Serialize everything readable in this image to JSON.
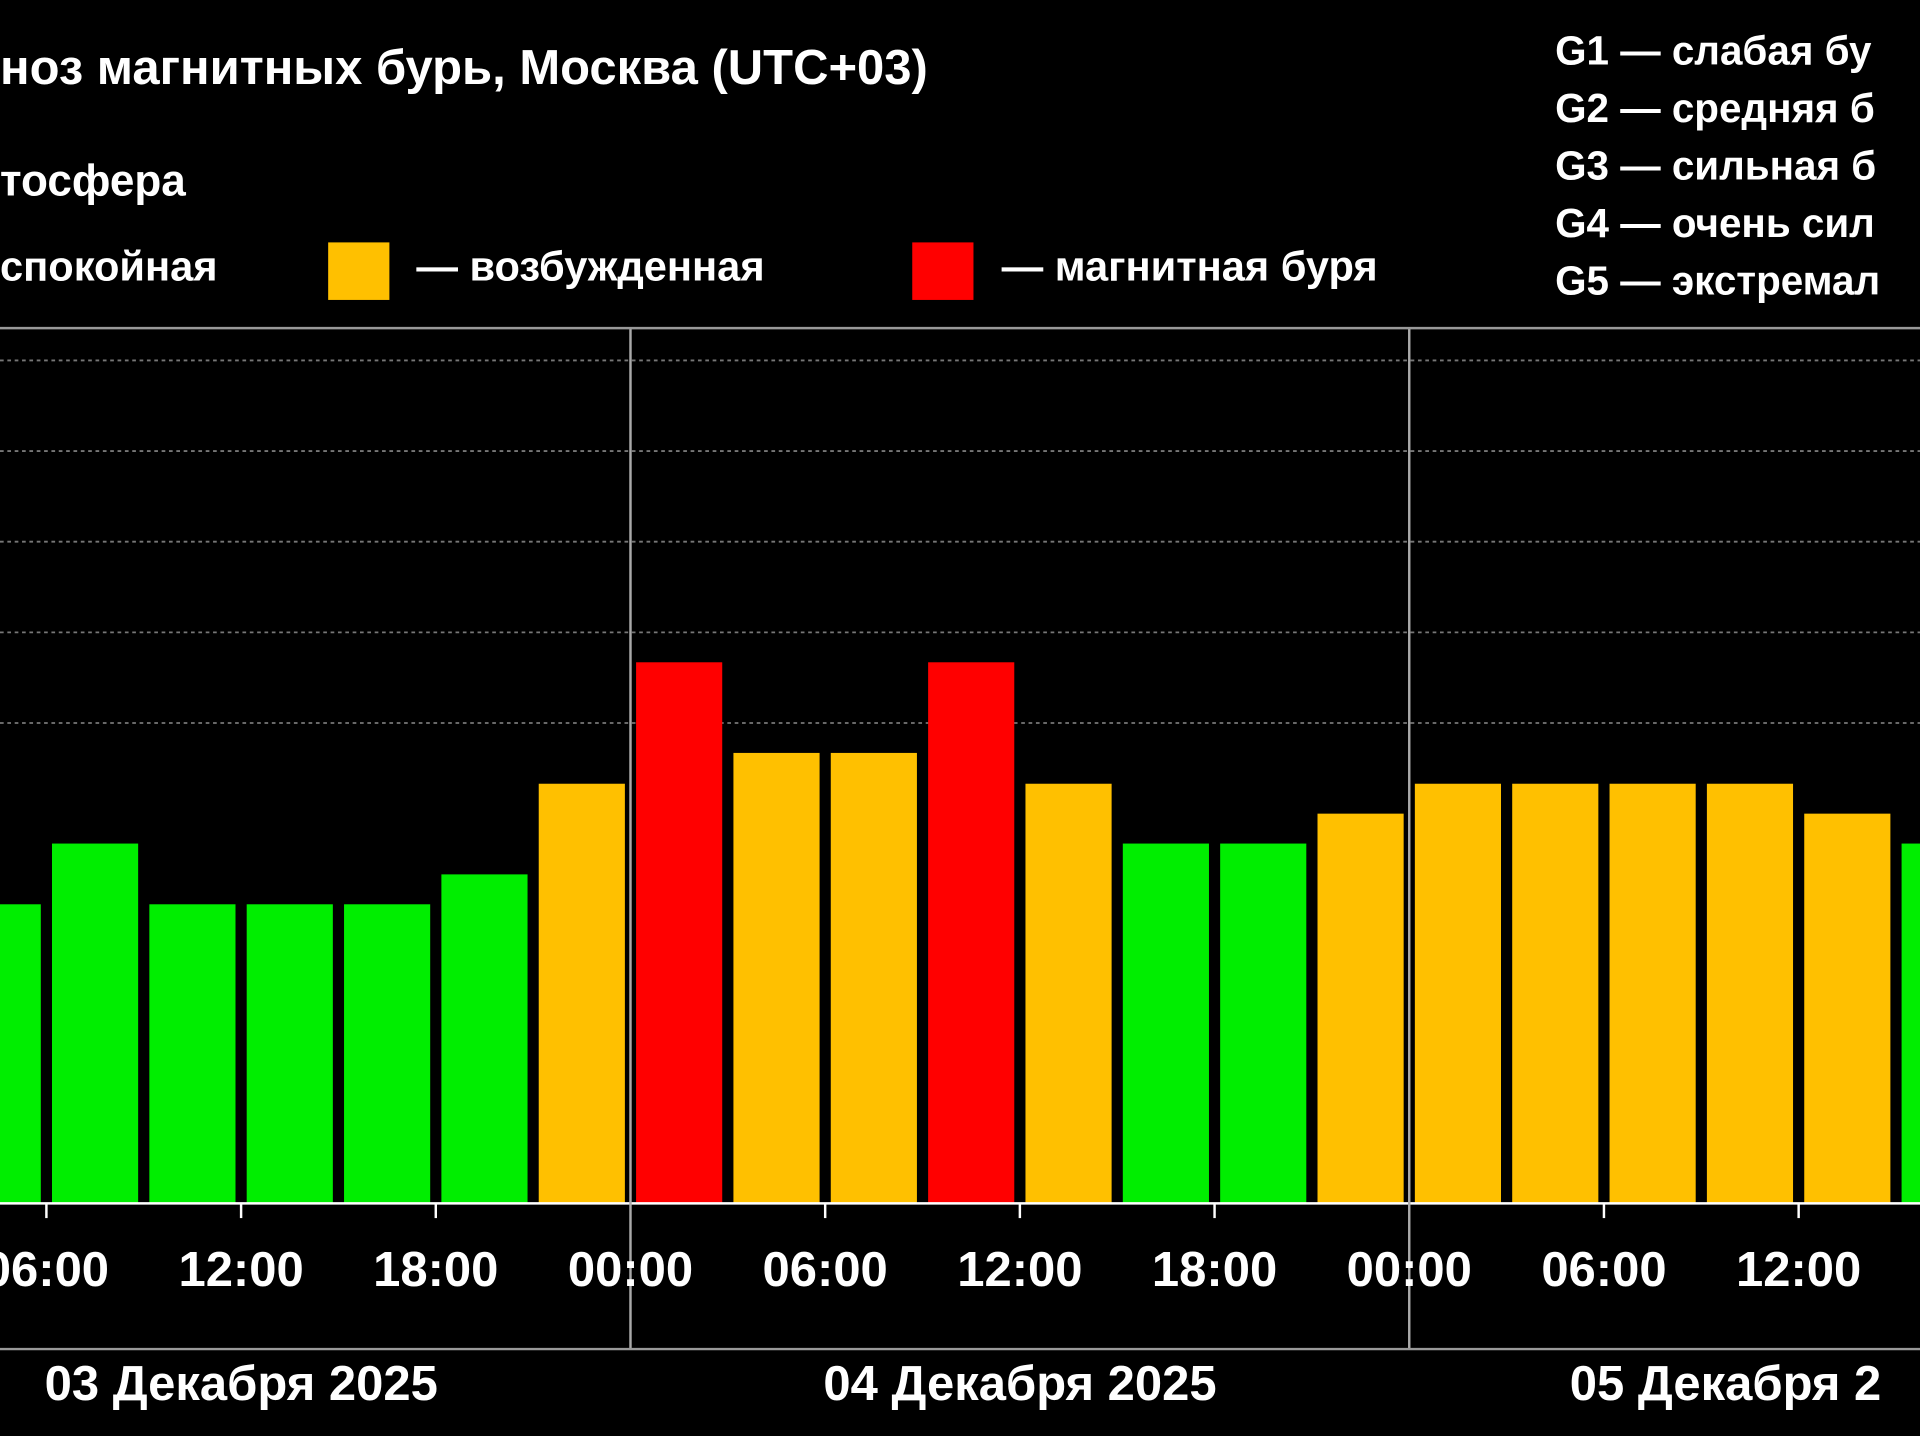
{
  "chart_data": {
    "type": "bar",
    "title": "ноз магнитных бурь, Москва (UTC+03)",
    "subtitle": "тосфера",
    "legend": [
      {
        "label": "спокойная",
        "color": "#00ee00"
      },
      {
        "label": "— возбужденная",
        "color": "#ffc000"
      },
      {
        "label": "— магнитная буря",
        "color": "#ff0000"
      }
    ],
    "scale_notes": [
      "G1 — слабая бу",
      "G2 — средняя б",
      "G3 — сильная б",
      "G4 — очень сил",
      "G5 — экстремал"
    ],
    "x": [
      4.5,
      7.5,
      10.5,
      13.5,
      16.5,
      19.5,
      22.5,
      25.5,
      28.5,
      31.5,
      34.5,
      37.5,
      40.5,
      43.5,
      46.5,
      49.5,
      52.5,
      55.5,
      58.5,
      61.5,
      64.5
    ],
    "values": [
      3,
      3.67,
      3,
      3,
      3,
      3.33,
      4.33,
      5.67,
      4.67,
      4.67,
      5.67,
      4.33,
      3.67,
      3.67,
      4,
      4.33,
      4.33,
      4.33,
      4.33,
      4,
      3.67
    ],
    "colors": [
      "#00ee00",
      "#00ee00",
      "#00ee00",
      "#00ee00",
      "#00ee00",
      "#00ee00",
      "#ffc000",
      "#ff0000",
      "#ffc000",
      "#ffc000",
      "#ff0000",
      "#ffc000",
      "#00ee00",
      "#00ee00",
      "#ffc000",
      "#ffc000",
      "#ffc000",
      "#ffc000",
      "#ffc000",
      "#ffc000",
      "#00ee00"
    ],
    "xlim": [
      4.57,
      63.74
    ],
    "xticks": [
      {
        "value": 6,
        "label": "06:00"
      },
      {
        "value": 12,
        "label": "12:00"
      },
      {
        "value": 18,
        "label": "18:00"
      },
      {
        "value": 24,
        "label": "00:00"
      },
      {
        "value": 30,
        "label": "06:00"
      },
      {
        "value": 36,
        "label": "12:00"
      },
      {
        "value": 42,
        "label": "18:00"
      },
      {
        "value": 48,
        "label": "00:00"
      },
      {
        "value": 54,
        "label": "06:00"
      },
      {
        "value": 60,
        "label": "12:00"
      }
    ],
    "day_labels": [
      "03 Декабря 2025",
      "04 Декабря 2025",
      "05 Декабря 2"
    ],
    "ylim": [
      -0.3,
      9.33
    ],
    "yticks": [
      5,
      6,
      7,
      8,
      9
    ],
    "grid": true
  }
}
